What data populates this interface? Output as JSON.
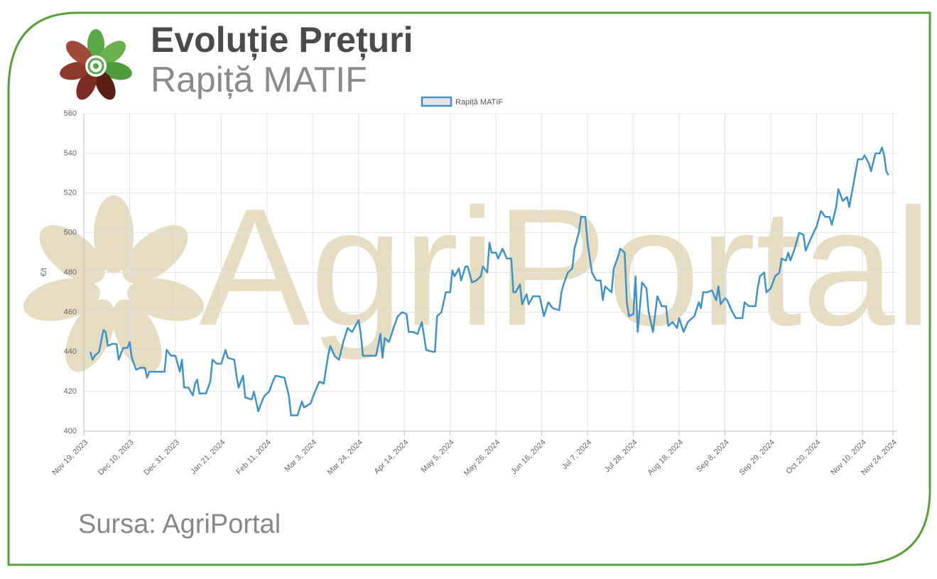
{
  "chart_data": {
    "type": "line",
    "title": "Evoluție Prețuri",
    "subtitle": "Rapiță MATIF",
    "watermark": "AgriPortal",
    "source": "Sursa: AgriPortal",
    "y_label": "€/t",
    "legend": "top",
    "grid": true,
    "xlim": [
      "2023-11-19",
      "2024-11-26"
    ],
    "xticks": [
      {
        "value": "2023-11-19",
        "label": "Nov 19, 2023"
      },
      {
        "value": "2023-12-10",
        "label": "Dec 10, 2023"
      },
      {
        "value": "2023-12-31",
        "label": "Dec 31, 2023"
      },
      {
        "value": "2024-01-21",
        "label": "Jan 21, 2024"
      },
      {
        "value": "2024-02-11",
        "label": "Feb 11, 2024"
      },
      {
        "value": "2024-03-03",
        "label": "Mar 3, 2024"
      },
      {
        "value": "2024-03-24",
        "label": "Mar 24, 2024"
      },
      {
        "value": "2024-04-14",
        "label": "Apr 14, 2024"
      },
      {
        "value": "2024-05-05",
        "label": "May 5, 2024"
      },
      {
        "value": "2024-05-26",
        "label": "May 26, 2024"
      },
      {
        "value": "2024-06-16",
        "label": "Jun 16, 2024"
      },
      {
        "value": "2024-07-07",
        "label": "Jul 7, 2024"
      },
      {
        "value": "2024-07-28",
        "label": "Jul 28, 2024"
      },
      {
        "value": "2024-08-18",
        "label": "Aug 18, 2024"
      },
      {
        "value": "2024-09-08",
        "label": "Sep 8, 2024"
      },
      {
        "value": "2024-09-29",
        "label": "Sep 29, 2024"
      },
      {
        "value": "2024-10-20",
        "label": "Oct 20, 2024"
      },
      {
        "value": "2024-11-10",
        "label": "Nov 10, 2024"
      },
      {
        "value": "2024-11-24",
        "label": "Nov 24, 2024"
      }
    ],
    "ylim": [
      400,
      560
    ],
    "yticks": [
      400,
      420,
      440,
      460,
      480,
      500,
      520,
      540,
      560
    ],
    "x": [
      "2023-11-22",
      "2023-11-23",
      "2023-11-24",
      "2023-11-26",
      "2023-11-28",
      "2023-11-29",
      "2023-11-30",
      "2023-12-02",
      "2023-12-04",
      "2023-12-05",
      "2023-12-07",
      "2023-12-09",
      "2023-12-10",
      "2023-12-11",
      "2023-12-13",
      "2023-12-15",
      "2023-12-17",
      "2023-12-18",
      "2023-12-19",
      "2023-12-22",
      "2023-12-26",
      "2023-12-27",
      "2023-12-29",
      "2023-12-31",
      "2024-01-02",
      "2024-01-03",
      "2024-01-04",
      "2024-01-06",
      "2024-01-08",
      "2024-01-09",
      "2024-01-10",
      "2024-01-11",
      "2024-01-14",
      "2024-01-16",
      "2024-01-17",
      "2024-01-19",
      "2024-01-21",
      "2024-01-23",
      "2024-01-24",
      "2024-01-27",
      "2024-01-28",
      "2024-01-29",
      "2024-01-31",
      "2024-02-01",
      "2024-02-04",
      "2024-02-05",
      "2024-02-07",
      "2024-02-09",
      "2024-02-10",
      "2024-02-12",
      "2024-02-14",
      "2024-02-15",
      "2024-02-19",
      "2024-02-21",
      "2024-02-22",
      "2024-02-25",
      "2024-02-27",
      "2024-02-28",
      "2024-03-02",
      "2024-03-04",
      "2024-03-06",
      "2024-03-08",
      "2024-03-10",
      "2024-03-11",
      "2024-03-13",
      "2024-03-15",
      "2024-03-17",
      "2024-03-19",
      "2024-03-21",
      "2024-03-24",
      "2024-03-25",
      "2024-03-26",
      "2024-03-29",
      "2024-04-01",
      "2024-04-03",
      "2024-04-04",
      "2024-04-05",
      "2024-04-07",
      "2024-04-09",
      "2024-04-11",
      "2024-04-13",
      "2024-04-15",
      "2024-04-16",
      "2024-04-18",
      "2024-04-20",
      "2024-04-22",
      "2024-04-23",
      "2024-04-24",
      "2024-04-27",
      "2024-04-28",
      "2024-04-29",
      "2024-05-01",
      "2024-05-03",
      "2024-05-05",
      "2024-05-06",
      "2024-05-07",
      "2024-05-09",
      "2024-05-10",
      "2024-05-12",
      "2024-05-13",
      "2024-05-15",
      "2024-05-17",
      "2024-05-19",
      "2024-05-20",
      "2024-05-22",
      "2024-05-23",
      "2024-05-24",
      "2024-05-26",
      "2024-05-27",
      "2024-05-29",
      "2024-05-31",
      "2024-06-02",
      "2024-06-03",
      "2024-06-04",
      "2024-06-06",
      "2024-06-07",
      "2024-06-09",
      "2024-06-10",
      "2024-06-12",
      "2024-06-15",
      "2024-06-17",
      "2024-06-19",
      "2024-06-21",
      "2024-06-24",
      "2024-06-25",
      "2024-06-26",
      "2024-06-28",
      "2024-06-30",
      "2024-07-01",
      "2024-07-03",
      "2024-07-04",
      "2024-07-06",
      "2024-07-07",
      "2024-07-09",
      "2024-07-11",
      "2024-07-13",
      "2024-07-14",
      "2024-07-15",
      "2024-07-18",
      "2024-07-19",
      "2024-07-21",
      "2024-07-22",
      "2024-07-24",
      "2024-07-25",
      "2024-07-26",
      "2024-07-28",
      "2024-07-29",
      "2024-07-30",
      "2024-08-01",
      "2024-08-03",
      "2024-08-04",
      "2024-08-06",
      "2024-08-08",
      "2024-08-10",
      "2024-08-12",
      "2024-08-13",
      "2024-08-15",
      "2024-08-17",
      "2024-08-18",
      "2024-08-20",
      "2024-08-22",
      "2024-08-25",
      "2024-08-27",
      "2024-08-28",
      "2024-08-29",
      "2024-08-31",
      "2024-09-02",
      "2024-09-04",
      "2024-09-05",
      "2024-09-06",
      "2024-09-08",
      "2024-09-09",
      "2024-09-11",
      "2024-09-13",
      "2024-09-16",
      "2024-09-17",
      "2024-09-19",
      "2024-09-22",
      "2024-09-23",
      "2024-09-24",
      "2024-09-26",
      "2024-09-27",
      "2024-09-29",
      "2024-10-01",
      "2024-10-03",
      "2024-10-04",
      "2024-10-06",
      "2024-10-07",
      "2024-10-08",
      "2024-10-10",
      "2024-10-12",
      "2024-10-14",
      "2024-10-15",
      "2024-10-17",
      "2024-10-19",
      "2024-10-20",
      "2024-10-22",
      "2024-10-24",
      "2024-10-26",
      "2024-10-27",
      "2024-10-29",
      "2024-10-30",
      "2024-11-01",
      "2024-11-03",
      "2024-11-04",
      "2024-11-06",
      "2024-11-08",
      "2024-11-10",
      "2024-11-11",
      "2024-11-13",
      "2024-11-14",
      "2024-11-16",
      "2024-11-18",
      "2024-11-19",
      "2024-11-20",
      "2024-11-21",
      "2024-11-22"
    ],
    "series": [
      {
        "name": "Rapiță MATIF",
        "color": "#3f92c6",
        "values": [
          440,
          436,
          438,
          440,
          451,
          450,
          443,
          444,
          444,
          436,
          442,
          442,
          445,
          437,
          431,
          432,
          432,
          427,
          430,
          430,
          430,
          441,
          438,
          438,
          430,
          436,
          422,
          422,
          418,
          424,
          426,
          419,
          419,
          425,
          436,
          434,
          434,
          441,
          437,
          436,
          428,
          422,
          428,
          417,
          416,
          420,
          410,
          416,
          418,
          420,
          426,
          428,
          427,
          418,
          408,
          408,
          415,
          412,
          414,
          420,
          425,
          424,
          438,
          443,
          438,
          436,
          445,
          452,
          450,
          456,
          449,
          438,
          438,
          438,
          449,
          437,
          447,
          445,
          452,
          458,
          460,
          459,
          450,
          450,
          449,
          455,
          448,
          441,
          440,
          440,
          458,
          460,
          470,
          470,
          481,
          478,
          482,
          476,
          483,
          483,
          475,
          476,
          478,
          483,
          480,
          495,
          490,
          490,
          487,
          492,
          487,
          487,
          470,
          470,
          474,
          464,
          469,
          464,
          468,
          468,
          458,
          465,
          462,
          461,
          470,
          474,
          480,
          482,
          492,
          500,
          508,
          508,
          495,
          480,
          476,
          476,
          466,
          473,
          470,
          482,
          488,
          492,
          490,
          465,
          458,
          459,
          478,
          450,
          475,
          472,
          460,
          450,
          468,
          463,
          463,
          453,
          455,
          452,
          457,
          450,
          455,
          458,
          465,
          462,
          470,
          470,
          471,
          466,
          473,
          464,
          467,
          466,
          461,
          457,
          457,
          465,
          463,
          463,
          472,
          478,
          480,
          470,
          472,
          478,
          480,
          487,
          486,
          490,
          486,
          492,
          500,
          499,
          491,
          496,
          501,
          503,
          511,
          508,
          508,
          504,
          513,
          522,
          516,
          518,
          513,
          525,
          537,
          537,
          539,
          535,
          531,
          540,
          540,
          543,
          539,
          531,
          529
        ]
      }
    ]
  }
}
